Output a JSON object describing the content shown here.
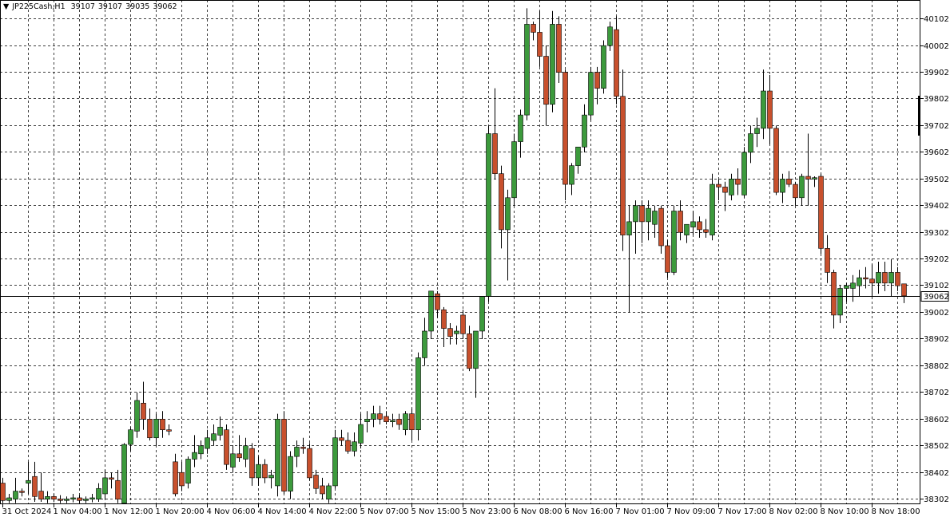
{
  "chart_data": {
    "type": "candlestick",
    "title": "JP225Cash,H1",
    "categories": [
      "31 Oct 2024",
      null,
      null,
      null,
      null,
      null,
      null,
      null,
      "1 Nov 04:00",
      null,
      null,
      null,
      null,
      null,
      null,
      null,
      "1 Nov 12:00",
      null,
      null,
      null,
      null,
      null,
      null,
      null,
      "1 Nov 20:00",
      null,
      null,
      null,
      null,
      null,
      null,
      null,
      "4 Nov 06:00",
      null,
      null,
      null,
      null,
      null,
      null,
      null,
      "4 Nov 14:00",
      null,
      null,
      null,
      null,
      null,
      null,
      null,
      "4 Nov 22:00",
      null,
      null,
      null,
      null,
      null,
      null,
      null,
      "5 Nov 07:00",
      null,
      null,
      null,
      null,
      null,
      null,
      null,
      "5 Nov 15:00",
      null,
      null,
      null,
      null,
      null,
      null,
      null,
      "5 Nov 23:00",
      null,
      null,
      null,
      null,
      null,
      null,
      null,
      "6 Nov 08:00",
      null,
      null,
      null,
      null,
      null,
      null,
      null,
      "6 Nov 16:00",
      null,
      null,
      null,
      null,
      null,
      null,
      null,
      "7 Nov 01:00",
      null,
      null,
      null,
      null,
      null,
      null,
      null,
      "7 Nov 09:00",
      null,
      null,
      null,
      null,
      null,
      null,
      null,
      "7 Nov 17:00",
      null,
      null,
      null,
      null,
      null,
      null,
      null,
      "8 Nov 02:00",
      null,
      null,
      null,
      null,
      null,
      null,
      null,
      "8 Nov 10:00",
      null,
      null,
      null,
      null,
      null,
      null,
      null,
      "8 Nov 18:00",
      null,
      null,
      null,
      null,
      null
    ],
    "open": [
      38360,
      38295,
      38300,
      38330,
      38360,
      38385,
      38330,
      38300,
      38310,
      38300,
      38295,
      38300,
      38305,
      38295,
      38300,
      38300,
      38320,
      38380,
      38370,
      38285,
      38505,
      38555,
      38660,
      38600,
      38530,
      38600,
      38560,
      38440,
      38400,
      38360,
      38450,
      38470,
      38490,
      38520,
      38540,
      38560,
      38420,
      38470,
      38450,
      38490,
      38380,
      38430,
      38380,
      38350,
      38600,
      38330,
      38460,
      38495,
      38490,
      38390,
      38350,
      38300,
      38350,
      38530,
      38520,
      38480,
      38510,
      38590,
      38600,
      38620,
      38610,
      38590,
      38600,
      38560,
      38620,
      38560,
      38830,
      38930,
      39070,
      39010,
      38940,
      38920,
      38990,
      38920,
      38790,
      38930,
      39060,
      39670,
      39520,
      39310,
      39430,
      39640,
      39740,
      40080,
      40050,
      39960,
      39780,
      40080,
      39900,
      39480,
      39550,
      39620,
      39740,
      39900,
      39840,
      40000,
      40060,
      39810,
      39290,
      39340,
      39400,
      39340,
      39330,
      39390,
      39250,
      39150,
      39380,
      39290,
      39320,
      39340,
      39310,
      39290,
      39480,
      39470,
      39440,
      39500,
      39440,
      39600,
      39670,
      39690,
      39830,
      39690,
      39450,
      39500,
      39480,
      39430,
      39510,
      39500,
      39510,
      39240,
      39150,
      38990,
      39090,
      39090,
      39100,
      39130,
      39125,
      39110,
      39150,
      39110,
      39150,
      39107
    ],
    "high": [
      38380,
      38320,
      38380,
      38340,
      38440,
      38440,
      38400,
      38330,
      38320,
      38315,
      38310,
      38320,
      38315,
      38310,
      38320,
      38360,
      38410,
      38400,
      38410,
      38510,
      38570,
      38700,
      38740,
      38640,
      38620,
      38630,
      38580,
      38470,
      38440,
      38460,
      38540,
      38520,
      38560,
      38580,
      38610,
      38580,
      38500,
      38540,
      38530,
      38510,
      38460,
      38450,
      38410,
      38620,
      38630,
      38480,
      38520,
      38530,
      38510,
      38410,
      38380,
      38360,
      38560,
      38560,
      38550,
      38550,
      38620,
      38630,
      38650,
      38650,
      38630,
      38620,
      38620,
      38630,
      38640,
      38850,
      38980,
      39080,
      39080,
      39020,
      38960,
      38950,
      39010,
      38950,
      38920,
      39060,
      39700,
      39840,
      39550,
      39460,
      39670,
      39760,
      40140,
      40090,
      40130,
      40000,
      40130,
      40110,
      39910,
      39560,
      39620,
      39780,
      39920,
      39920,
      40020,
      40090,
      40110,
      39910,
      39400,
      39420,
      39420,
      39420,
      39400,
      39400,
      39270,
      39400,
      39420,
      39330,
      39380,
      39360,
      39350,
      39520,
      39500,
      39490,
      39520,
      39540,
      39620,
      39700,
      39730,
      39910,
      39890,
      39700,
      39520,
      39530,
      39490,
      39520,
      39670,
      39510,
      39520,
      39290,
      39160,
      39100,
      39110,
      39140,
      39160,
      39170,
      39180,
      39190,
      39190,
      39200,
      39170,
      39107
    ],
    "low": [
      38285,
      38285,
      38285,
      38310,
      38320,
      38290,
      38290,
      38285,
      38290,
      38285,
      38285,
      38288,
      38285,
      38285,
      38288,
      38290,
      38300,
      38340,
      38285,
      38285,
      38480,
      38530,
      38560,
      38520,
      38500,
      38530,
      38540,
      38310,
      38330,
      38340,
      38420,
      38450,
      38470,
      38500,
      38520,
      38410,
      38400,
      38440,
      38420,
      38350,
      38350,
      38360,
      38340,
      38310,
      38320,
      38300,
      38420,
      38470,
      38370,
      38320,
      38300,
      38285,
      38340,
      38500,
      38470,
      38460,
      38490,
      38550,
      38570,
      38580,
      38580,
      38570,
      38560,
      38540,
      38520,
      38520,
      38800,
      38900,
      38980,
      38870,
      38880,
      38880,
      38900,
      38780,
      38680,
      38900,
      39040,
      39500,
      39240,
      39120,
      39400,
      39580,
      39720,
      40020,
      39920,
      39700,
      39750,
      39860,
      39420,
      39440,
      39520,
      39600,
      39720,
      39780,
      39820,
      39980,
      39780,
      39230,
      39000,
      39220,
      39260,
      39270,
      39280,
      39220,
      39130,
      39140,
      39270,
      39260,
      39290,
      39280,
      39280,
      39270,
      39420,
      39380,
      39420,
      39440,
      39430,
      39560,
      39620,
      39650,
      39630,
      39440,
      39410,
      39470,
      39400,
      39400,
      39400,
      39470,
      39220,
      39110,
      38940,
      38960,
      39040,
      39040,
      39060,
      39090,
      39060,
      39070,
      39080,
      39060,
      39080,
      39035
    ],
    "close": [
      38295,
      38305,
      38330,
      38325,
      38370,
      38310,
      38300,
      38310,
      38300,
      38295,
      38300,
      38305,
      38295,
      38300,
      38305,
      38340,
      38380,
      38375,
      38300,
      38505,
      38560,
      38670,
      38600,
      38530,
      38600,
      38560,
      38555,
      38320,
      38350,
      38450,
      38475,
      38500,
      38530,
      38545,
      38570,
      38430,
      38470,
      38455,
      38500,
      38380,
      38430,
      38380,
      38390,
      38600,
      38330,
      38460,
      38495,
      38490,
      38380,
      38340,
      38320,
      38350,
      38530,
      38520,
      38480,
      38515,
      38580,
      38600,
      38620,
      38600,
      38590,
      38595,
      38580,
      38620,
      38560,
      38830,
      38930,
      39080,
      39010,
      38940,
      38910,
      38930,
      38920,
      38790,
      38930,
      39060,
      39670,
      39520,
      39310,
      39430,
      39640,
      39740,
      40080,
      40050,
      39960,
      39780,
      40080,
      39900,
      39480,
      39550,
      39620,
      39740,
      39900,
      39840,
      40000,
      40070,
      39810,
      39290,
      39340,
      39400,
      39340,
      39390,
      39380,
      39250,
      39150,
      39380,
      39300,
      39330,
      39340,
      39310,
      39300,
      39480,
      39470,
      39450,
      39500,
      39480,
      39600,
      39670,
      39690,
      39830,
      39690,
      39450,
      39500,
      39480,
      39430,
      39510,
      39500,
      39505,
      39240,
      39150,
      38990,
      39090,
      39100,
      39110,
      39130,
      39125,
      39110,
      39150,
      39110,
      39150,
      39100,
      39062
    ],
    "up_color": "#3c9a3c",
    "down_color": "#c8502d",
    "ylim": [
      38281,
      40171
    ],
    "yticks": [
      38302,
      38402,
      38502,
      38602,
      38702,
      38802,
      38902,
      39002,
      39102,
      39202,
      39302,
      39402,
      39502,
      39602,
      39702,
      39802,
      39902,
      40002,
      40102
    ],
    "grid": true
  }
}
